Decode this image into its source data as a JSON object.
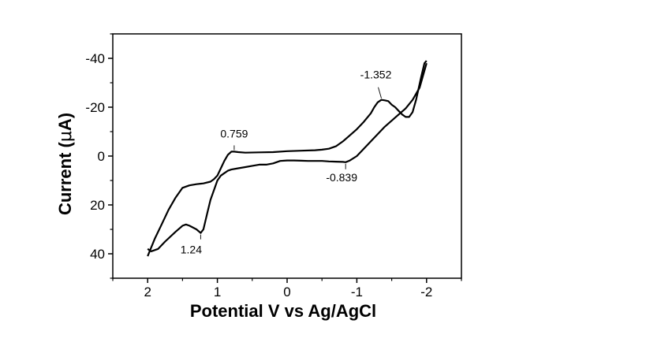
{
  "chart_data": {
    "type": "line",
    "title": "",
    "xlabel": "Potential V vs Ag/AgCl",
    "ylabel_prefix": "Current (",
    "ylabel_mu": "μ",
    "ylabel_suffix": "A)",
    "xlim": [
      2.5,
      -2.5
    ],
    "ylim": [
      50,
      -50
    ],
    "x_axis_reversed": true,
    "y_axis_reversed": true,
    "x_ticks": [
      2,
      1,
      0,
      -1,
      -2
    ],
    "x_tick_labels": [
      "2",
      "1",
      "0",
      "-1",
      "-2"
    ],
    "y_ticks": [
      -40,
      -20,
      0,
      20,
      40
    ],
    "y_tick_labels": [
      "-40",
      "-20",
      "0",
      "20",
      "40"
    ],
    "grid": false,
    "series": [
      {
        "x": [
          2.0,
          1.95,
          1.85,
          1.75,
          1.6,
          1.5,
          1.45,
          1.4,
          1.3,
          1.24,
          1.2,
          1.15,
          1.1,
          1.0,
          0.95,
          0.9,
          0.85,
          0.8,
          0.7,
          0.6,
          0.5,
          0.4,
          0.3,
          0.2,
          0.1,
          0.0,
          -0.1,
          -0.2,
          -0.3,
          -0.4,
          -0.5,
          -0.6,
          -0.7,
          -0.8,
          -0.839,
          -0.9,
          -1.0,
          -1.1,
          -1.2,
          -1.3,
          -1.4,
          -1.5,
          -1.6,
          -1.7,
          -1.8,
          -1.9,
          -2.0
        ],
        "y": [
          38,
          39,
          38,
          35,
          31,
          28.5,
          28,
          28.5,
          30,
          31.5,
          30,
          24,
          18,
          10,
          8,
          7,
          6,
          5.5,
          5,
          4.5,
          4,
          3.5,
          3.5,
          3,
          2,
          1.8,
          1.8,
          1.9,
          2,
          2,
          2,
          2.2,
          2.3,
          2.4,
          2.5,
          1.8,
          0,
          -3,
          -6,
          -9,
          -12,
          -14.5,
          -17,
          -19.5,
          -23,
          -28,
          -38
        ]
      },
      {
        "x": [
          -2.0,
          -1.97,
          -1.92,
          -1.85,
          -1.8,
          -1.75,
          -1.7,
          -1.65,
          -1.6,
          -1.55,
          -1.5,
          -1.45,
          -1.4,
          -1.352,
          -1.3,
          -1.25,
          -1.2,
          -1.1,
          -1.0,
          -0.9,
          -0.8,
          -0.7,
          -0.6,
          -0.5,
          -0.4,
          -0.2,
          0.0,
          0.2,
          0.4,
          0.6,
          0.7,
          0.759,
          0.8,
          0.85,
          0.9,
          0.95,
          1.0,
          1.05,
          1.1,
          1.2,
          1.3,
          1.4,
          1.5,
          1.6,
          1.7,
          1.8,
          1.9,
          2.0
        ],
        "y": [
          -39,
          -38,
          -32,
          -23,
          -18,
          -16,
          -16,
          -17,
          -18.5,
          -20,
          -21,
          -22.5,
          -22.8,
          -23,
          -22,
          -20,
          -17.5,
          -14,
          -11,
          -8.5,
          -6,
          -4,
          -3,
          -2.6,
          -2.4,
          -2.2,
          -2,
          -1.6,
          -1.5,
          -1.4,
          -1.6,
          -1.8,
          -1.8,
          -0.5,
          2,
          5,
          8,
          9.5,
          10.5,
          11.2,
          11.5,
          12,
          13,
          17,
          22,
          28,
          34,
          41
        ]
      }
    ],
    "annotations": [
      {
        "text": "-1.352",
        "x": -1.352,
        "y": -23
      },
      {
        "text": "0.759",
        "x": 0.759,
        "y": -1.8
      },
      {
        "text": "-0.839",
        "x": -0.839,
        "y": 2.5
      },
      {
        "text": "1.24",
        "x": 1.24,
        "y": 31.5
      }
    ],
    "colors": {
      "line": "#000000",
      "axis": "#000000"
    }
  }
}
